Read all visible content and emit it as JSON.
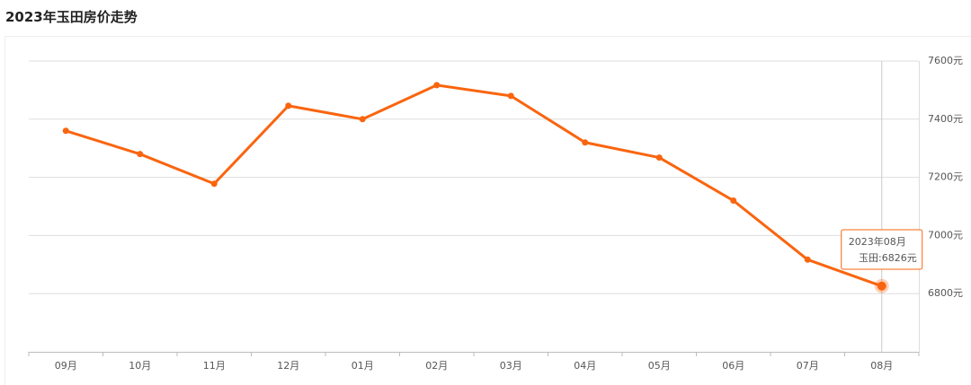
{
  "chart_data": {
    "type": "line",
    "title": "2023年玉田房价走势",
    "categories": [
      "09月",
      "10月",
      "11月",
      "12月",
      "01月",
      "02月",
      "03月",
      "04月",
      "05月",
      "06月",
      "07月",
      "08月"
    ],
    "series": [
      {
        "color": "#f9650f",
        "values": [
          7360,
          7280,
          7178,
          7446,
          7400,
          7517,
          7480,
          7320,
          7268,
          7120,
          6917,
          6826
        ]
      }
    ],
    "ylim": [
      6600,
      7600
    ],
    "yticks": [
      {
        "value": 6800,
        "label": "6800元"
      },
      {
        "value": 7000,
        "label": "7000元"
      },
      {
        "value": 7200,
        "label": "7200元"
      },
      {
        "value": 7400,
        "label": "7400元"
      },
      {
        "value": 7600,
        "label": "7600元"
      }
    ],
    "grid": true,
    "tooltip": {
      "title": "2023年08月",
      "text": "玉田:6826元"
    }
  }
}
